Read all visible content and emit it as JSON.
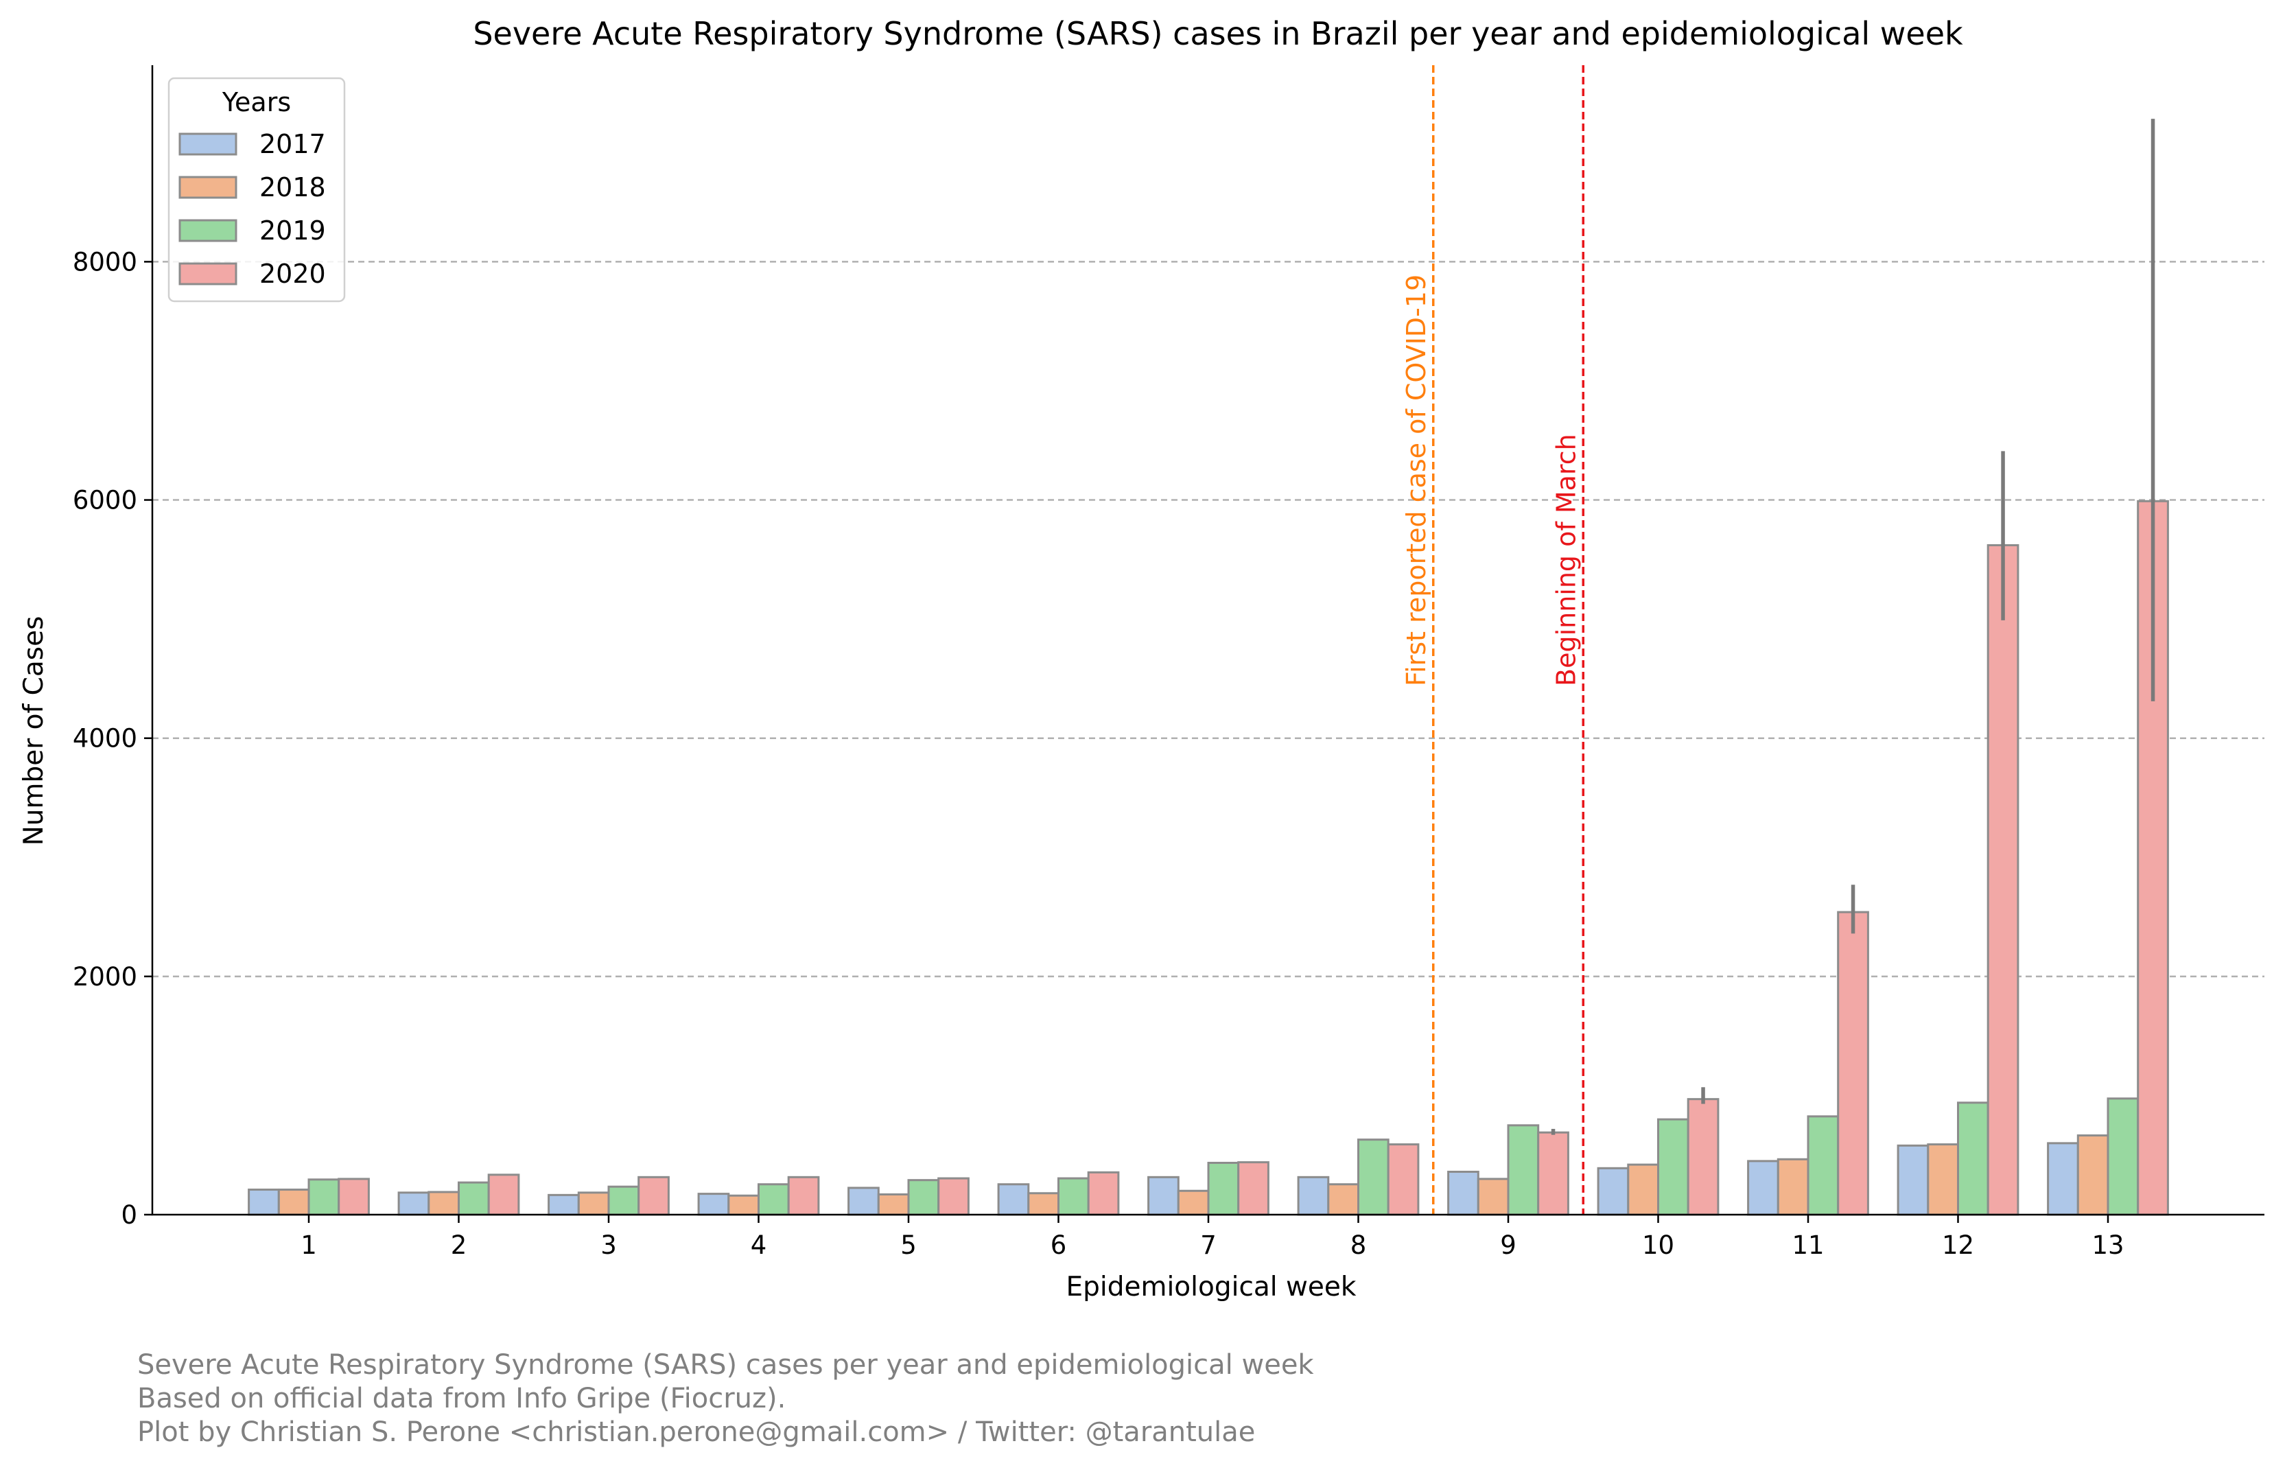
{
  "chart_data": {
    "type": "bar",
    "title": "Severe Acute Respiratory Syndrome (SARS) cases in Brazil per year and epidemiological week",
    "xlabel": "Epidemiological week",
    "ylabel": "Number of Cases",
    "ylim": [
      0,
      9650
    ],
    "yticks": [
      0,
      2000,
      4000,
      6000,
      8000
    ],
    "grid": "y, dashed",
    "legend": {
      "title": "Years",
      "placement": "top-left"
    },
    "categories": [
      "1",
      "2",
      "3",
      "4",
      "5",
      "6",
      "7",
      "8",
      "9",
      "10",
      "11",
      "12",
      "13"
    ],
    "series": [
      {
        "name": "2017",
        "color": "#aec7e8",
        "values": [
          210,
          185,
          165,
          175,
          225,
          255,
          315,
          315,
          360,
          390,
          450,
          580,
          600
        ]
      },
      {
        "name": "2018",
        "color": "#f2b48c",
        "values": [
          210,
          190,
          185,
          160,
          170,
          180,
          200,
          255,
          300,
          420,
          465,
          590,
          665
        ]
      },
      {
        "name": "2019",
        "color": "#98d8a0",
        "values": [
          295,
          270,
          235,
          255,
          290,
          305,
          435,
          630,
          750,
          800,
          825,
          940,
          975
        ]
      },
      {
        "name": "2020",
        "color": "#f2a8a6",
        "values": [
          300,
          335,
          315,
          315,
          305,
          355,
          440,
          590,
          690,
          970,
          2540,
          5620,
          5990
        ],
        "error_bars": [
          null,
          null,
          null,
          null,
          null,
          null,
          null,
          null,
          [
            670,
            720
          ],
          [
            930,
            1070
          ],
          [
            2360,
            2770
          ],
          [
            4990,
            6410
          ],
          [
            4310,
            9200
          ]
        ]
      }
    ],
    "reference_lines": [
      {
        "label": "First reported case of COVID-19",
        "x_position": "between week 8 and 9",
        "color": "#ff7f0e"
      },
      {
        "label": "Beginning of March",
        "x_position": "between week 9 and 10",
        "color": "#e8161b"
      }
    ]
  },
  "caption": {
    "line1": "Severe Acute Respiratory Syndrome (SARS) cases per year and epidemiological week",
    "line2": "Based on official data from Info Gripe (Fiocruz).",
    "line3": "Plot by Christian S. Perone <christian.perone@gmail.com> / Twitter: @tarantulae"
  }
}
